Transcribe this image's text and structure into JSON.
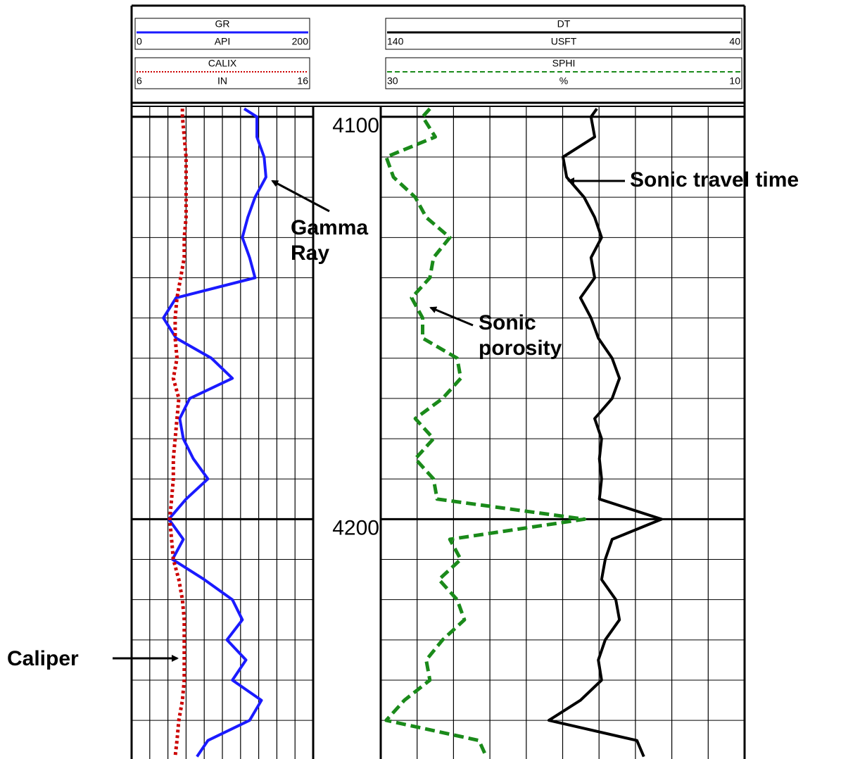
{
  "chart_data": {
    "type": "well-log",
    "ylim": [
      4097.4,
      4259.6
    ],
    "yticks": [
      4100,
      4200
    ],
    "minor_yticks": [
      4110,
      4120,
      4130,
      4140,
      4150,
      4160,
      4170,
      4180,
      4190,
      4210,
      4220,
      4230,
      4240,
      4250
    ],
    "track_divisions": 10,
    "depth": [
      4098,
      4100,
      4105,
      4110,
      4115,
      4120,
      4125,
      4130,
      4135,
      4140,
      4145,
      4150,
      4155,
      4160,
      4165,
      4170,
      4175,
      4180,
      4185,
      4190,
      4195,
      4200,
      4205,
      4210,
      4215,
      4220,
      4225,
      4230,
      4235,
      4240,
      4245,
      4250,
      4255,
      4259
    ],
    "series": [
      {
        "name": "GR",
        "unit": "API",
        "scale": [
          0,
          200
        ],
        "track": 0,
        "color": "#1a1aff",
        "style": "solid",
        "values": [
          124,
          138,
          138,
          146,
          148,
          136,
          128,
          122,
          130,
          136,
          49,
          35,
          49,
          88,
          111,
          64,
          53,
          57,
          68,
          84,
          60,
          41,
          57,
          45,
          80,
          111,
          122,
          105,
          126,
          111,
          143,
          130,
          84,
          72
        ]
      },
      {
        "name": "CALIX",
        "unit": "IN",
        "scale": [
          6,
          16
        ],
        "track": 0,
        "color": "#cc0000",
        "style": "dotted",
        "values": [
          8.8,
          8.8,
          8.9,
          9.0,
          9.0,
          9.0,
          9.0,
          8.9,
          8.9,
          8.7,
          8.5,
          8.4,
          8.4,
          8.5,
          8.3,
          8.6,
          8.5,
          8.4,
          8.3,
          8.3,
          8.2,
          8.1,
          8.2,
          8.3,
          8.6,
          8.8,
          8.9,
          8.9,
          8.9,
          8.9,
          8.8,
          8.6,
          8.5,
          8.4
        ]
      },
      {
        "name": "DT",
        "unit": "USFT",
        "scale": [
          140,
          40
        ],
        "track": 1,
        "color": "#000000",
        "style": "solid",
        "values": [
          80.6,
          82.2,
          81.2,
          89.9,
          88.9,
          84.1,
          81.2,
          79.3,
          82.2,
          81.2,
          85.1,
          82.2,
          80.2,
          76.4,
          74.4,
          76.4,
          81.2,
          79.3,
          79.9,
          79.3,
          79.9,
          62.8,
          76.4,
          78.3,
          79.3,
          75.4,
          74.4,
          78.3,
          80.2,
          79.3,
          85.1,
          93.8,
          69.6,
          67.7
        ]
      },
      {
        "name": "SPHI",
        "unit": "%",
        "scale": [
          30,
          10
        ],
        "track": 1,
        "color": "#1a8a1a",
        "style": "dashed",
        "values": [
          27.3,
          27.7,
          27.0,
          29.7,
          29.3,
          28.1,
          27.5,
          26.2,
          27.1,
          27.3,
          28.3,
          27.7,
          27.7,
          25.8,
          25.6,
          26.6,
          28.1,
          27.1,
          28.1,
          27.1,
          26.9,
          18.8,
          26.2,
          25.6,
          26.8,
          25.8,
          25.4,
          26.6,
          27.5,
          27.3,
          28.7,
          29.7,
          24.6,
          24.2
        ]
      }
    ],
    "annotations": [
      {
        "lines": [
          "Gamma",
          "Ray"
        ]
      },
      {
        "lines": [
          "Sonic",
          "porosity"
        ]
      },
      {
        "lines": [
          "Sonic travel time"
        ]
      },
      {
        "lines": [
          "Caliper"
        ]
      }
    ]
  }
}
